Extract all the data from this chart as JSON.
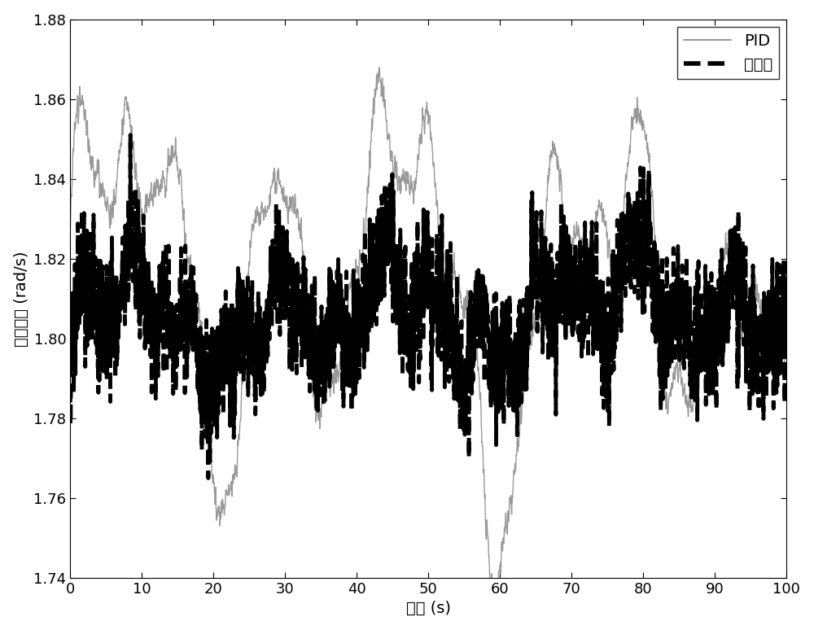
{
  "title": "",
  "xlabel": "时间 (s)",
  "ylabel": "风轮转速 (rad/s)",
  "xlim": [
    0,
    100
  ],
  "ylim": [
    1.74,
    1.88
  ],
  "xticks": [
    0,
    10,
    20,
    30,
    40,
    50,
    60,
    70,
    80,
    90,
    100
  ],
  "yticks": [
    1.74,
    1.76,
    1.78,
    1.8,
    1.82,
    1.84,
    1.86,
    1.88
  ],
  "pid_color": "#999999",
  "pid_linewidth": 1.0,
  "method_color": "#000000",
  "method_linewidth": 3.5,
  "legend_labels": [
    "PID",
    "本方法"
  ],
  "legend_loc": "upper right",
  "font_size": 14,
  "tick_font_size": 13,
  "background_color": "#ffffff",
  "n_points": 3000,
  "seed": 42
}
